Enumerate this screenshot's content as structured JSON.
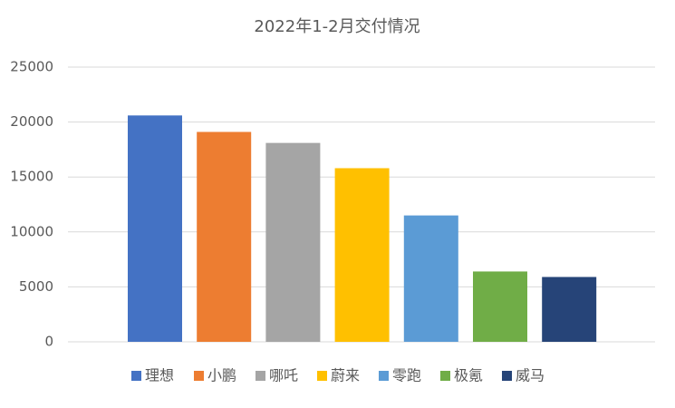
{
  "chart_data": {
    "type": "bar",
    "title": "2022年1-2月交付情况",
    "categories": [
      "理想",
      "小鹏",
      "哪吒",
      "蔚来",
      "零跑",
      "极氪",
      "威马"
    ],
    "values": [
      20600,
      19100,
      18100,
      15800,
      11500,
      6400,
      5900
    ],
    "colors": [
      "#4472c4",
      "#ed7d31",
      "#a5a5a5",
      "#ffc000",
      "#5b9bd5",
      "#70ad47",
      "#264478"
    ],
    "ylim": [
      0,
      25000
    ],
    "yticks": [
      0,
      5000,
      10000,
      15000,
      20000,
      25000
    ],
    "grid": true
  }
}
